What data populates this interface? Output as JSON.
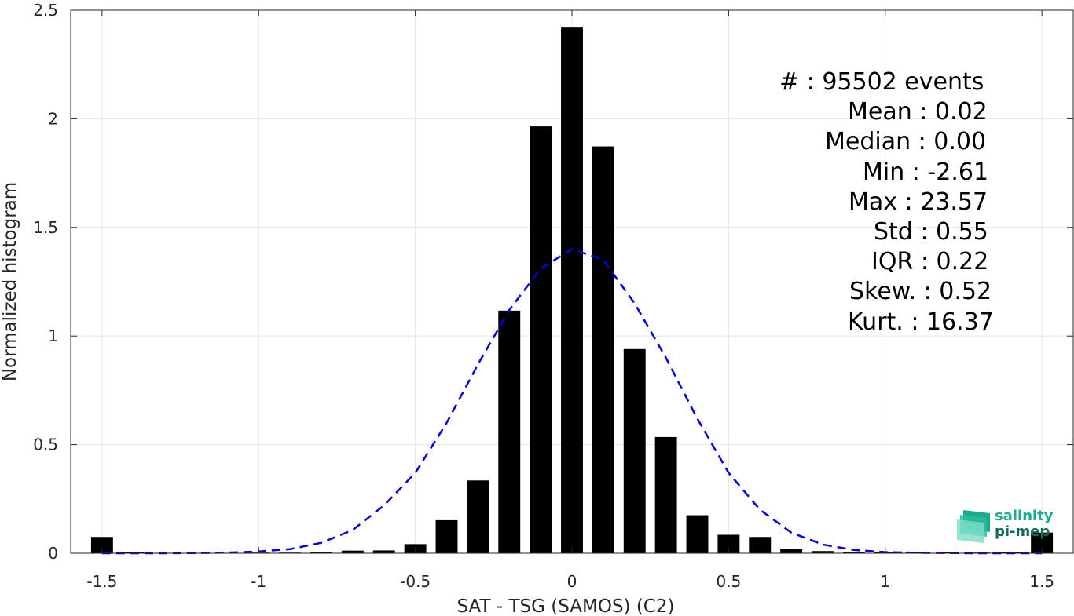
{
  "chart_data": {
    "type": "bar",
    "xlabel": "SAT - TSG (SAMOS) (C2)",
    "ylabel": "Normalized histogram",
    "xlim": [
      -1.6,
      1.6
    ],
    "ylim": [
      0,
      2.5
    ],
    "grid": true,
    "xticks": [
      "-1.5",
      "-1",
      "-0.5",
      "0",
      "0.5",
      "1",
      "1.5"
    ],
    "yticks": [
      "0",
      "0.5",
      "1",
      "1.5",
      "2",
      "2.5"
    ],
    "bar_width": 0.07,
    "x": [
      -1.5,
      -1.4,
      -1.3,
      -1.2,
      -1.1,
      -1.0,
      -0.9,
      -0.8,
      -0.7,
      -0.6,
      -0.5,
      -0.4,
      -0.3,
      -0.2,
      -0.1,
      0.0,
      0.1,
      0.2,
      0.3,
      0.4,
      0.5,
      0.6,
      0.7,
      0.8,
      0.9,
      1.0,
      1.1,
      1.2,
      1.3,
      1.4,
      1.5
    ],
    "values": [
      0.075,
      0.005,
      0.002,
      0.002,
      0.002,
      0.003,
      0.003,
      0.005,
      0.012,
      0.013,
      0.042,
      0.152,
      0.335,
      1.117,
      1.965,
      2.42,
      1.873,
      0.94,
      0.535,
      0.175,
      0.085,
      0.075,
      0.018,
      0.01,
      0.006,
      0.004,
      0.004,
      0.004,
      0.003,
      0.004,
      0.095
    ],
    "bar_color": "#000000",
    "fit_curve": {
      "style": "dashed",
      "color": "#0000e6",
      "x": [
        -1.5,
        -1.4,
        -1.3,
        -1.2,
        -1.1,
        -1.0,
        -0.9,
        -0.8,
        -0.7,
        -0.6,
        -0.5,
        -0.4,
        -0.3,
        -0.2,
        -0.1,
        0.0,
        0.1,
        0.2,
        0.3,
        0.4,
        0.5,
        0.6,
        0.7,
        0.8,
        0.9,
        1.0,
        1.1,
        1.2,
        1.3,
        1.4,
        1.5
      ],
      "y": [
        0.0,
        0.0,
        0.0,
        0.001,
        0.003,
        0.008,
        0.019,
        0.048,
        0.107,
        0.22,
        0.37,
        0.6,
        0.87,
        1.12,
        1.31,
        1.4,
        1.35,
        1.15,
        0.9,
        0.62,
        0.37,
        0.2,
        0.095,
        0.04,
        0.015,
        0.005,
        0.002,
        0.001,
        0.0,
        0.0,
        0.0
      ]
    },
    "annotations": [
      "#  : 95502 events",
      "Mean : 0.02",
      "Median : 0.00",
      "Min : -2.61",
      "Max : 23.57",
      "Std : 0.55",
      "IQR : 0.22",
      "Skew. : 0.52",
      "Kurt. : 16.37"
    ]
  },
  "logo": {
    "line1": "salinity",
    "line2": "pi-mep",
    "colors": {
      "primary": "#1aaa8f",
      "dark": "#0f6b5a"
    }
  }
}
